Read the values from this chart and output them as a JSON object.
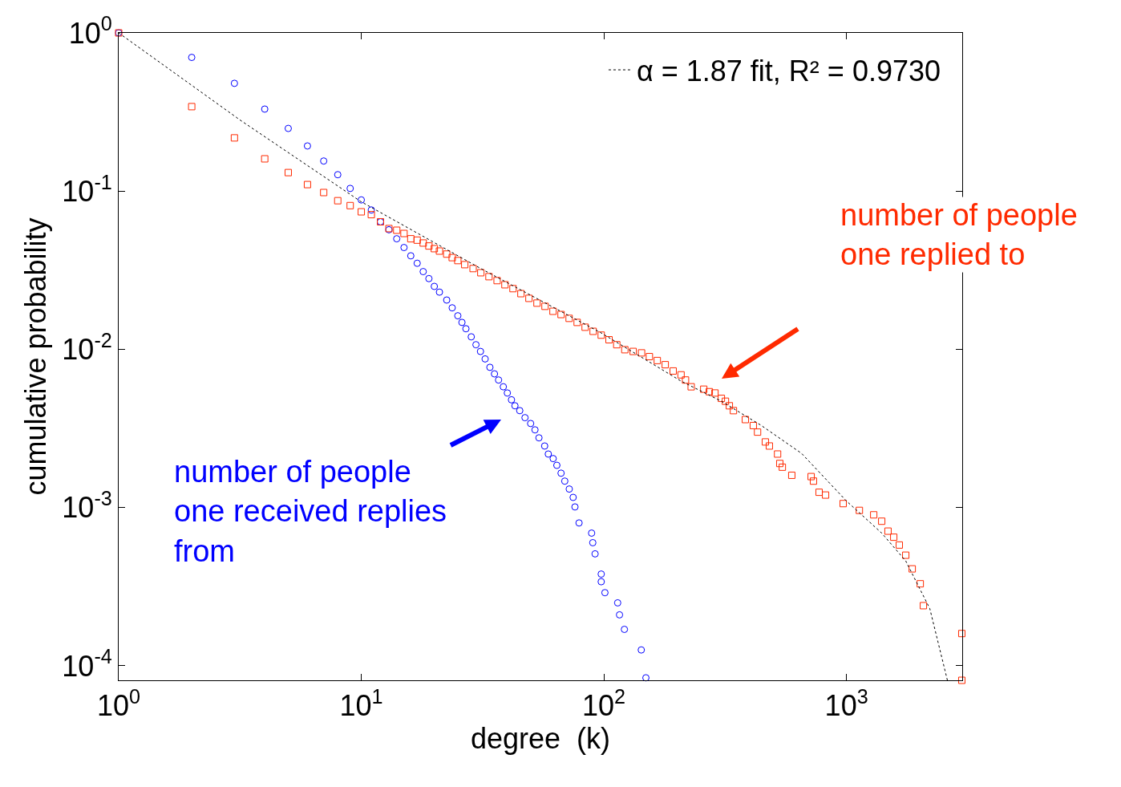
{
  "chart_data": {
    "type": "scatter",
    "xlabel": "degree  (k)",
    "ylabel": "cumulative probability",
    "log": "xy",
    "grid": false,
    "legend": "top right",
    "xlim": [
      1,
      3000
    ],
    "ylim": [
      8.1e-05,
      1
    ],
    "xticks": [
      {
        "value": 1,
        "label": "10$^{0}$"
      },
      {
        "value": 10,
        "label": "10$^{1}$"
      },
      {
        "value": 100,
        "label": "10$^{2}$"
      },
      {
        "value": 1000,
        "label": "10$^{3}$"
      }
    ],
    "yticks": [
      {
        "value": 1,
        "label": "10$^{0}$"
      },
      {
        "value": 0.1,
        "label": "10$^{-1}$"
      },
      {
        "value": 0.01,
        "label": "10$^{-2}$"
      },
      {
        "value": 0.001,
        "label": "10$^{-3}$"
      },
      {
        "value": 0.0001,
        "label": "10$^{-4}$"
      }
    ],
    "series": [
      {
        "color": "#0000ff",
        "marker": "circle",
        "x": [
          1,
          2,
          3,
          4,
          5,
          6,
          7,
          8,
          9,
          10,
          11,
          12,
          13,
          14,
          15,
          16,
          17,
          18,
          19,
          20,
          21,
          22.5,
          23.7,
          25,
          26,
          27,
          28.4,
          29.7,
          31,
          32.4,
          33.9,
          35.4,
          36.8,
          38.5,
          40,
          41.6,
          43,
          45,
          47.3,
          49.9,
          52,
          54,
          57,
          59,
          61.8,
          64,
          66.6,
          69,
          72,
          74.7,
          76,
          79,
          89,
          90,
          92,
          97.5,
          97.5,
          101,
          114,
          116,
          121.5,
          142.6,
          149
        ],
        "values": [
          1,
          0.7,
          0.48,
          0.33,
          0.249,
          0.193,
          0.155,
          0.127,
          0.104,
          0.088,
          0.076,
          0.064,
          0.057,
          0.05,
          0.044,
          0.039,
          0.035,
          0.031,
          0.028,
          0.025,
          0.023,
          0.0205,
          0.0183,
          0.0163,
          0.0148,
          0.0135,
          0.012,
          0.0107,
          0.0097,
          0.0087,
          0.0077,
          0.007,
          0.0064,
          0.0058,
          0.0053,
          0.0048,
          0.0044,
          0.0041,
          0.0037,
          0.0034,
          0.0031,
          0.00276,
          0.00245,
          0.00218,
          0.00204,
          0.00185,
          0.00165,
          0.00147,
          0.00131,
          0.00116,
          0.00101,
          0.0008,
          0.00069,
          0.0006,
          0.00051,
          0.00038,
          0.00034,
          0.00029,
          0.00025,
          0.00021,
          0.00017,
          0.000126,
          8.4e-05
        ]
      },
      {
        "color": "#ff2a00",
        "marker": "square",
        "x": [
          1,
          2,
          3,
          4,
          5,
          6,
          7,
          8,
          9,
          10,
          11,
          12,
          13,
          14,
          15,
          16,
          17,
          18,
          19,
          20,
          21,
          22.5,
          23.7,
          25,
          26.7,
          28.9,
          31.1,
          33.6,
          36.3,
          39.1,
          42.2,
          45.5,
          49.1,
          53,
          57.2,
          61.7,
          66.6,
          71.9,
          77.6,
          83.7,
          90.3,
          97.5,
          105,
          113,
          122,
          132,
          143,
          154,
          166,
          179,
          193,
          208,
          217,
          229,
          258,
          272,
          287,
          305,
          317,
          329,
          342,
          383,
          413,
          430,
          463,
          481,
          520,
          531,
          544,
          595,
          715,
          731,
          771,
          820,
          969,
          1130,
          1295,
          1397,
          1483,
          1566,
          1651,
          1755,
          1866,
          2014,
          2075,
          2988,
          2988
        ],
        "values": [
          1,
          0.342,
          0.217,
          0.16,
          0.131,
          0.11,
          0.098,
          0.087,
          0.081,
          0.074,
          0.071,
          0.064,
          0.058,
          0.0566,
          0.054,
          0.05,
          0.049,
          0.047,
          0.045,
          0.0433,
          0.0418,
          0.04,
          0.038,
          0.0364,
          0.0343,
          0.0324,
          0.0305,
          0.0288,
          0.0272,
          0.0256,
          0.0242,
          0.0225,
          0.021,
          0.0196,
          0.0187,
          0.0174,
          0.0166,
          0.0157,
          0.0148,
          0.0138,
          0.013,
          0.0123,
          0.0115,
          0.0107,
          0.00995,
          0.0097,
          0.0095,
          0.009,
          0.0085,
          0.008,
          0.0073,
          0.0069,
          0.0064,
          0.0058,
          0.0056,
          0.0054,
          0.0053,
          0.0049,
          0.0047,
          0.0044,
          0.0041,
          0.0036,
          0.0033,
          0.003,
          0.0026,
          0.00245,
          0.00218,
          0.0019,
          0.0018,
          0.0016,
          0.00157,
          0.00147,
          0.00125,
          0.0012,
          0.00106,
          0.00096,
          0.0009,
          0.00082,
          0.00071,
          0.00065,
          0.00058,
          0.0005,
          0.00041,
          0.00033,
          0.00024,
          0.00016,
          8.1e-05
        ]
      },
      {
        "type": "line",
        "name": "α = 1.87 fit, R² = 0.9730",
        "color": "#000000",
        "marker": "none",
        "line_style": "dotted",
        "x": [
          1,
          3.18,
          9.95,
          31.1,
          97.5,
          208,
          305,
          446,
          653,
          1000,
          1397,
          1755,
          2205,
          2606
        ],
        "values": [
          1,
          0.28,
          0.086,
          0.0324,
          0.0127,
          0.0063,
          0.0047,
          0.0033,
          0.0022,
          0.0011,
          0.00069,
          0.00046,
          0.00023,
          8.1e-05
        ]
      }
    ],
    "annotations": [
      "number of people\none received replies\nfrom",
      "number of people\none replied to"
    ]
  }
}
